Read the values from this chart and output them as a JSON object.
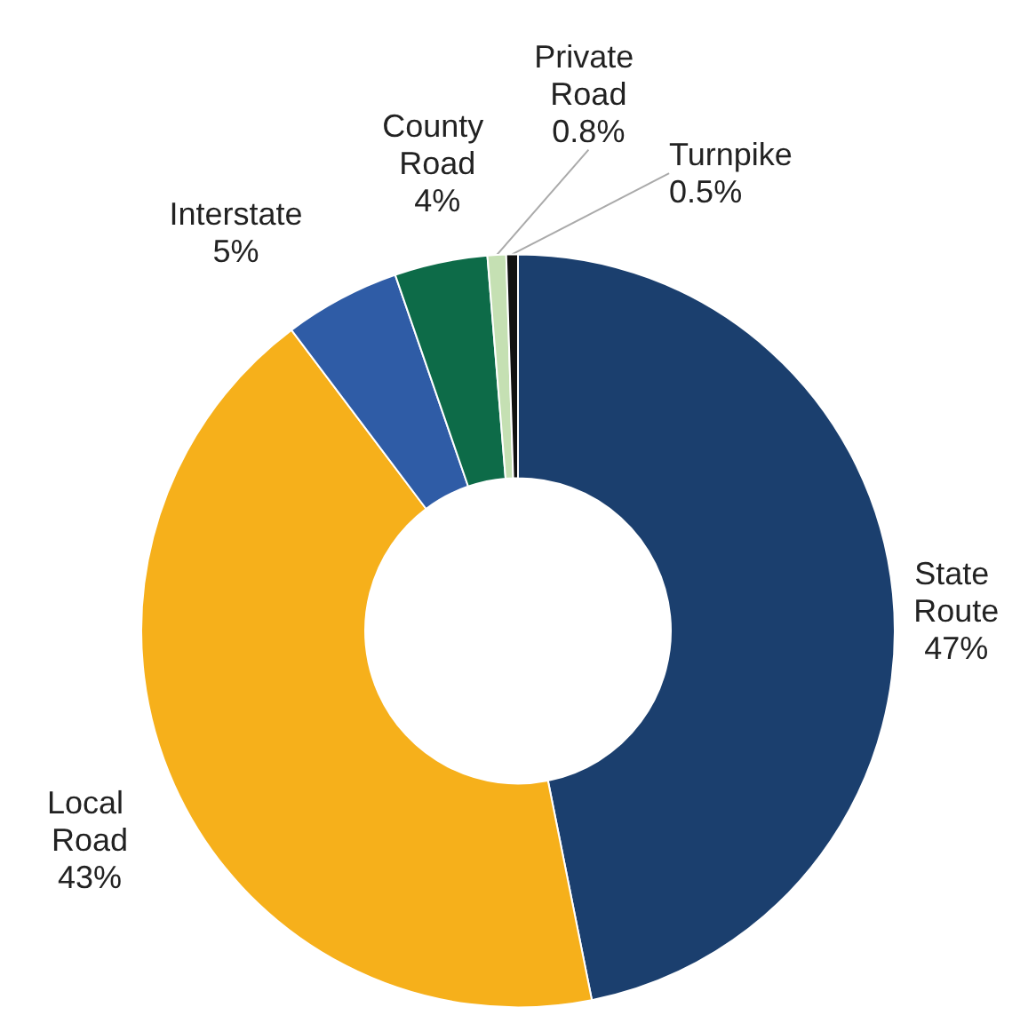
{
  "chart_data": {
    "type": "donut",
    "categories": [
      "State Route",
      "Local Road",
      "Interstate",
      "County Road",
      "Private Road",
      "Turnpike"
    ],
    "values": [
      47,
      43,
      5,
      4,
      0.8,
      0.5
    ],
    "value_labels": [
      "47%",
      "43%",
      "5%",
      "4%",
      "0.8%",
      "0.5%"
    ],
    "colors": [
      "#1b3f6e",
      "#f6b01b",
      "#2f5ca6",
      "#0d6b48",
      "#c5e0b3",
      "#111111"
    ],
    "legend": false
  }
}
